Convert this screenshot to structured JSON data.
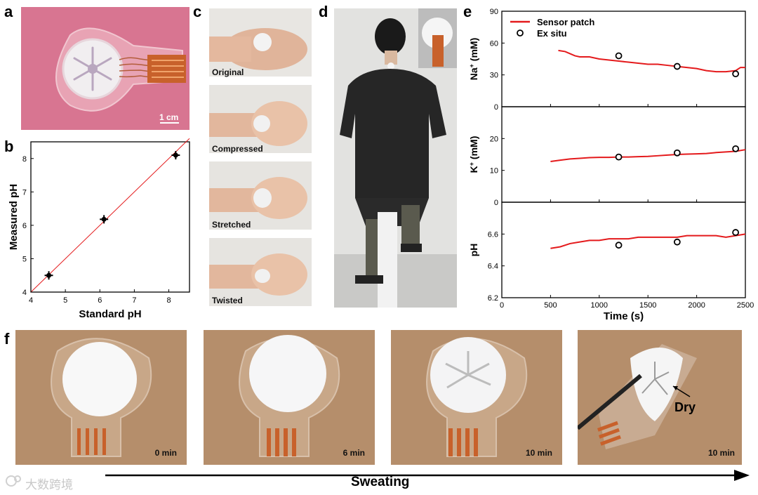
{
  "panels": {
    "a": {
      "label": "a",
      "scale_bar": "1 cm"
    },
    "b": {
      "label": "b"
    },
    "c": {
      "label": "c",
      "states": [
        "Original",
        "Compressed",
        "Stretched",
        "Twisted"
      ]
    },
    "d": {
      "label": "d"
    },
    "e": {
      "label": "e"
    },
    "f": {
      "label": "f",
      "times": [
        "0 min",
        "6 min",
        "10 min",
        "10 min"
      ],
      "annotation": "Dry",
      "arrow_label": "Sweating"
    }
  },
  "watermark": "大数跨境",
  "colors": {
    "sensor": "#e41a1c",
    "fit": "#e41a1c",
    "points": "#000000",
    "skin_pink": "#d9768f",
    "electrode": "#c8612b"
  },
  "chart_data": [
    {
      "type": "scatter",
      "panel": "b",
      "xlabel": "Standard pH",
      "ylabel": "Measured pH",
      "xlim": [
        4,
        8.6
      ],
      "ylim": [
        4,
        8.5
      ],
      "xticks": [
        "4",
        "5",
        "6",
        "7",
        "8"
      ],
      "yticks": [
        "4",
        "5",
        "6",
        "7",
        "8"
      ],
      "points": [
        {
          "x": 4.52,
          "y": 4.5
        },
        {
          "x": 6.12,
          "y": 6.18
        },
        {
          "x": 8.2,
          "y": 8.1
        }
      ],
      "fit_line": [
        [
          4,
          4
        ],
        [
          8.6,
          8.6
        ]
      ]
    },
    {
      "type": "line",
      "panel": "e",
      "xlabel": "Time (s)",
      "xlim": [
        0,
        2500
      ],
      "xticks": [
        "0",
        "500",
        "1000",
        "1500",
        "2000",
        "2500"
      ],
      "legend": [
        "Sensor patch",
        "Ex situ"
      ],
      "legend_position": "top-left",
      "subplots": [
        {
          "ylabel_main": "Na",
          "ylabel_sup": "+",
          "ylabel_unit": " (mM)",
          "ylim": [
            0,
            90
          ],
          "yticks": [
            "0",
            "30",
            "60",
            "90"
          ],
          "sensor": [
            [
              580,
              53
            ],
            [
              650,
              52
            ],
            [
              700,
              50
            ],
            [
              750,
              48
            ],
            [
              800,
              47
            ],
            [
              900,
              47
            ],
            [
              1000,
              45
            ],
            [
              1100,
              44
            ],
            [
              1200,
              43
            ],
            [
              1300,
              42
            ],
            [
              1400,
              41
            ],
            [
              1500,
              40
            ],
            [
              1600,
              40
            ],
            [
              1700,
              39
            ],
            [
              1800,
              38
            ],
            [
              1900,
              37
            ],
            [
              2000,
              36
            ],
            [
              2100,
              34
            ],
            [
              2200,
              33
            ],
            [
              2300,
              33
            ],
            [
              2400,
              34
            ],
            [
              2450,
              37
            ],
            [
              2500,
              37
            ]
          ],
          "ex_situ": [
            [
              1200,
              48
            ],
            [
              1800,
              38
            ],
            [
              2400,
              31
            ]
          ]
        },
        {
          "ylabel_main": "K",
          "ylabel_sup": "+",
          "ylabel_unit": " (mM)",
          "ylim": [
            0,
            30
          ],
          "yticks": [
            "0",
            "10",
            "20"
          ],
          "sensor": [
            [
              500,
              12.8
            ],
            [
              600,
              13.2
            ],
            [
              700,
              13.6
            ],
            [
              800,
              13.8
            ],
            [
              900,
              14.0
            ],
            [
              1000,
              14.1
            ],
            [
              1100,
              14.1
            ],
            [
              1200,
              14.2
            ],
            [
              1300,
              14.2
            ],
            [
              1400,
              14.3
            ],
            [
              1500,
              14.4
            ],
            [
              1600,
              14.6
            ],
            [
              1700,
              14.8
            ],
            [
              1800,
              15.0
            ],
            [
              1900,
              15.1
            ],
            [
              2000,
              15.2
            ],
            [
              2100,
              15.3
            ],
            [
              2200,
              15.6
            ],
            [
              2300,
              15.8
            ],
            [
              2400,
              16.0
            ],
            [
              2500,
              16.5
            ]
          ],
          "ex_situ": [
            [
              1200,
              14.2
            ],
            [
              1800,
              15.5
            ],
            [
              2400,
              16.8
            ]
          ]
        },
        {
          "ylabel_main": "pH",
          "ylabel_sup": "",
          "ylabel_unit": "",
          "ylim": [
            6.2,
            6.8
          ],
          "yticks": [
            "6.2",
            "6.4",
            "6.6"
          ],
          "sensor": [
            [
              500,
              6.51
            ],
            [
              600,
              6.52
            ],
            [
              700,
              6.54
            ],
            [
              800,
              6.55
            ],
            [
              900,
              6.56
            ],
            [
              1000,
              6.56
            ],
            [
              1100,
              6.57
            ],
            [
              1200,
              6.57
            ],
            [
              1300,
              6.57
            ],
            [
              1400,
              6.58
            ],
            [
              1500,
              6.58
            ],
            [
              1600,
              6.58
            ],
            [
              1700,
              6.58
            ],
            [
              1800,
              6.58
            ],
            [
              1900,
              6.59
            ],
            [
              2000,
              6.59
            ],
            [
              2100,
              6.59
            ],
            [
              2200,
              6.59
            ],
            [
              2300,
              6.58
            ],
            [
              2400,
              6.59
            ],
            [
              2500,
              6.6
            ]
          ],
          "ex_situ": [
            [
              1200,
              6.53
            ],
            [
              1800,
              6.55
            ],
            [
              2400,
              6.61
            ]
          ]
        }
      ]
    }
  ]
}
